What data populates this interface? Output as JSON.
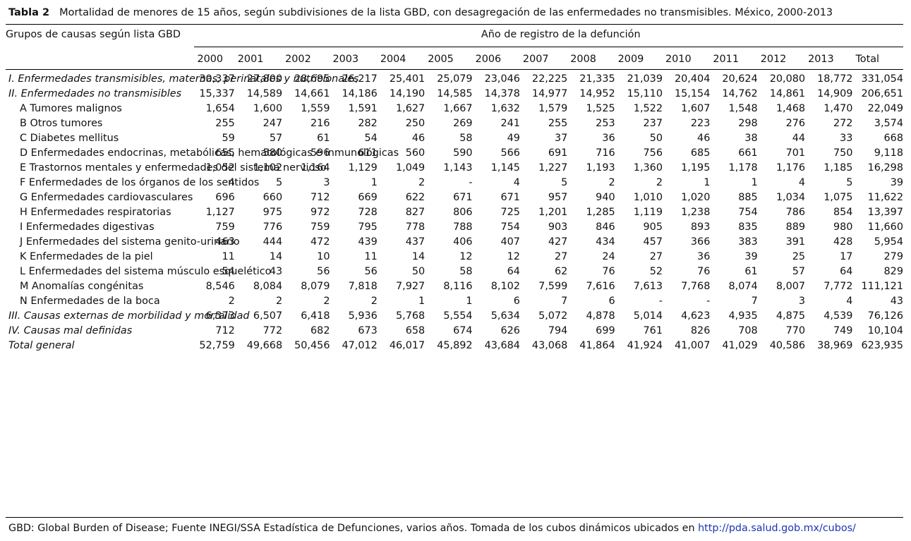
{
  "caption": {
    "label": "Tabla 2",
    "text": "Mortalidad de menores de 15 años, según subdivisiones de la lista GBD, con desagregación de las enfermedades no transmisibles. México, 2000-2013"
  },
  "header": {
    "group_col": "Grupos de causas según lista GBD",
    "year_span": "Año de registro de la defunción",
    "columns": [
      "2000",
      "2001",
      "2002",
      "2003",
      "2004",
      "2005",
      "2006",
      "2007",
      "2008",
      "2009",
      "2010",
      "2011",
      "2012",
      "2013",
      "Total"
    ]
  },
  "rows": [
    {
      "label": "I. Enfermedades transmisibles, maternas, perinatales y nutricionales",
      "values": [
        "30,337",
        "27,800",
        "28,695",
        "26,217",
        "25,401",
        "25,079",
        "23,046",
        "22,225",
        "21,335",
        "21,039",
        "20,404",
        "20,624",
        "20,080",
        "18,772",
        "331,054"
      ]
    },
    {
      "label": "II. Enfermedades no transmisibles",
      "values": [
        "15,337",
        "14,589",
        "14,661",
        "14,186",
        "14,190",
        "14,585",
        "14,378",
        "14,977",
        "14,952",
        "15,110",
        "15,154",
        "14,762",
        "14,861",
        "14,909",
        "206,651"
      ]
    },
    {
      "label": "A Tumores malignos",
      "values": [
        "1,654",
        "1,600",
        "1,559",
        "1,591",
        "1,627",
        "1,667",
        "1,632",
        "1,579",
        "1,525",
        "1,522",
        "1,607",
        "1,548",
        "1,468",
        "1,470",
        "22,049"
      ]
    },
    {
      "label": "B Otros tumores",
      "values": [
        "255",
        "247",
        "216",
        "282",
        "250",
        "269",
        "241",
        "255",
        "253",
        "237",
        "223",
        "298",
        "276",
        "272",
        "3,574"
      ]
    },
    {
      "label": "C Diabetes mellitus",
      "values": [
        "59",
        "57",
        "61",
        "54",
        "46",
        "58",
        "49",
        "37",
        "36",
        "50",
        "46",
        "38",
        "44",
        "33",
        "668"
      ]
    },
    {
      "label": "D Enfermedades endocrinas, metabólicas, hematológicas e inmunológicas",
      "values": [
        "655",
        "580",
        "596",
        "611",
        "560",
        "590",
        "566",
        "691",
        "716",
        "756",
        "685",
        "661",
        "701",
        "750",
        "9,118"
      ]
    },
    {
      "label": "E Trastornos mentales y enfermedades del sistema nervioso",
      "values": [
        "1,052",
        "1,102",
        "1,164",
        "1,129",
        "1,049",
        "1,143",
        "1,145",
        "1,227",
        "1,193",
        "1,360",
        "1,195",
        "1,178",
        "1,176",
        "1,185",
        "16,298"
      ]
    },
    {
      "label": "F Enfermedades de los órganos de los sentidos",
      "values": [
        "4",
        "5",
        "3",
        "1",
        "2",
        "-",
        "4",
        "5",
        "2",
        "2",
        "1",
        "1",
        "4",
        "5",
        "39"
      ]
    },
    {
      "label": "G Enfermedades cardiovasculares",
      "values": [
        "696",
        "660",
        "712",
        "669",
        "622",
        "671",
        "671",
        "957",
        "940",
        "1,010",
        "1,020",
        "885",
        "1,034",
        "1,075",
        "11,622"
      ]
    },
    {
      "label": "H Enfermedades respiratorias",
      "values": [
        "1,127",
        "975",
        "972",
        "728",
        "827",
        "806",
        "725",
        "1,201",
        "1,285",
        "1,119",
        "1,238",
        "754",
        "786",
        "854",
        "13,397"
      ]
    },
    {
      "label": "I Enfermedades digestivas",
      "values": [
        "759",
        "776",
        "759",
        "795",
        "778",
        "788",
        "754",
        "903",
        "846",
        "905",
        "893",
        "835",
        "889",
        "980",
        "11,660"
      ]
    },
    {
      "label": "J Enfermedades del sistema genito-urinario",
      "values": [
        "463",
        "444",
        "472",
        "439",
        "437",
        "406",
        "407",
        "427",
        "434",
        "457",
        "366",
        "383",
        "391",
        "428",
        "5,954"
      ]
    },
    {
      "label": "K Enfermedades de la piel",
      "values": [
        "11",
        "14",
        "10",
        "11",
        "14",
        "12",
        "12",
        "27",
        "24",
        "27",
        "36",
        "39",
        "25",
        "17",
        "279"
      ]
    },
    {
      "label": "L Enfermedades del sistema músculo esquelético",
      "values": [
        "54",
        "43",
        "56",
        "56",
        "50",
        "58",
        "64",
        "62",
        "76",
        "52",
        "76",
        "61",
        "57",
        "64",
        "829"
      ]
    },
    {
      "label": "M Anomalías congénitas",
      "values": [
        "8,546",
        "8,084",
        "8,079",
        "7,818",
        "7,927",
        "8,116",
        "8,102",
        "7,599",
        "7,616",
        "7,613",
        "7,768",
        "8,074",
        "8,007",
        "7,772",
        "111,121"
      ]
    },
    {
      "label": "N Enfermedades de la boca",
      "values": [
        "2",
        "2",
        "2",
        "2",
        "1",
        "1",
        "6",
        "7",
        "6",
        "-",
        "-",
        "7",
        "3",
        "4",
        "43"
      ]
    },
    {
      "label": "III. Causas externas de morbilidad y mortalidad",
      "values": [
        "6,373",
        "6,507",
        "6,418",
        "5,936",
        "5,768",
        "5,554",
        "5,634",
        "5,072",
        "4,878",
        "5,014",
        "4,623",
        "4,935",
        "4,875",
        "4,539",
        "76,126"
      ]
    },
    {
      "label": "IV. Causas mal definidas",
      "values": [
        "712",
        "772",
        "682",
        "673",
        "658",
        "674",
        "626",
        "794",
        "699",
        "761",
        "826",
        "708",
        "770",
        "749",
        "10,104"
      ]
    },
    {
      "label": "Total general",
      "values": [
        "52,759",
        "49,668",
        "50,456",
        "47,012",
        "46,017",
        "45,892",
        "43,684",
        "43,068",
        "41,864",
        "41,924",
        "41,007",
        "41,029",
        "40,586",
        "38,969",
        "623,935"
      ]
    }
  ],
  "footnote": {
    "text": "GBD: Global Burden of Disease; Fuente INEGI/SSA Estadística de Defunciones, varios años. Tomada de los cubos dinámicos ubicados en ",
    "link": "http://pda.salud.gob.mx/cubos/"
  }
}
